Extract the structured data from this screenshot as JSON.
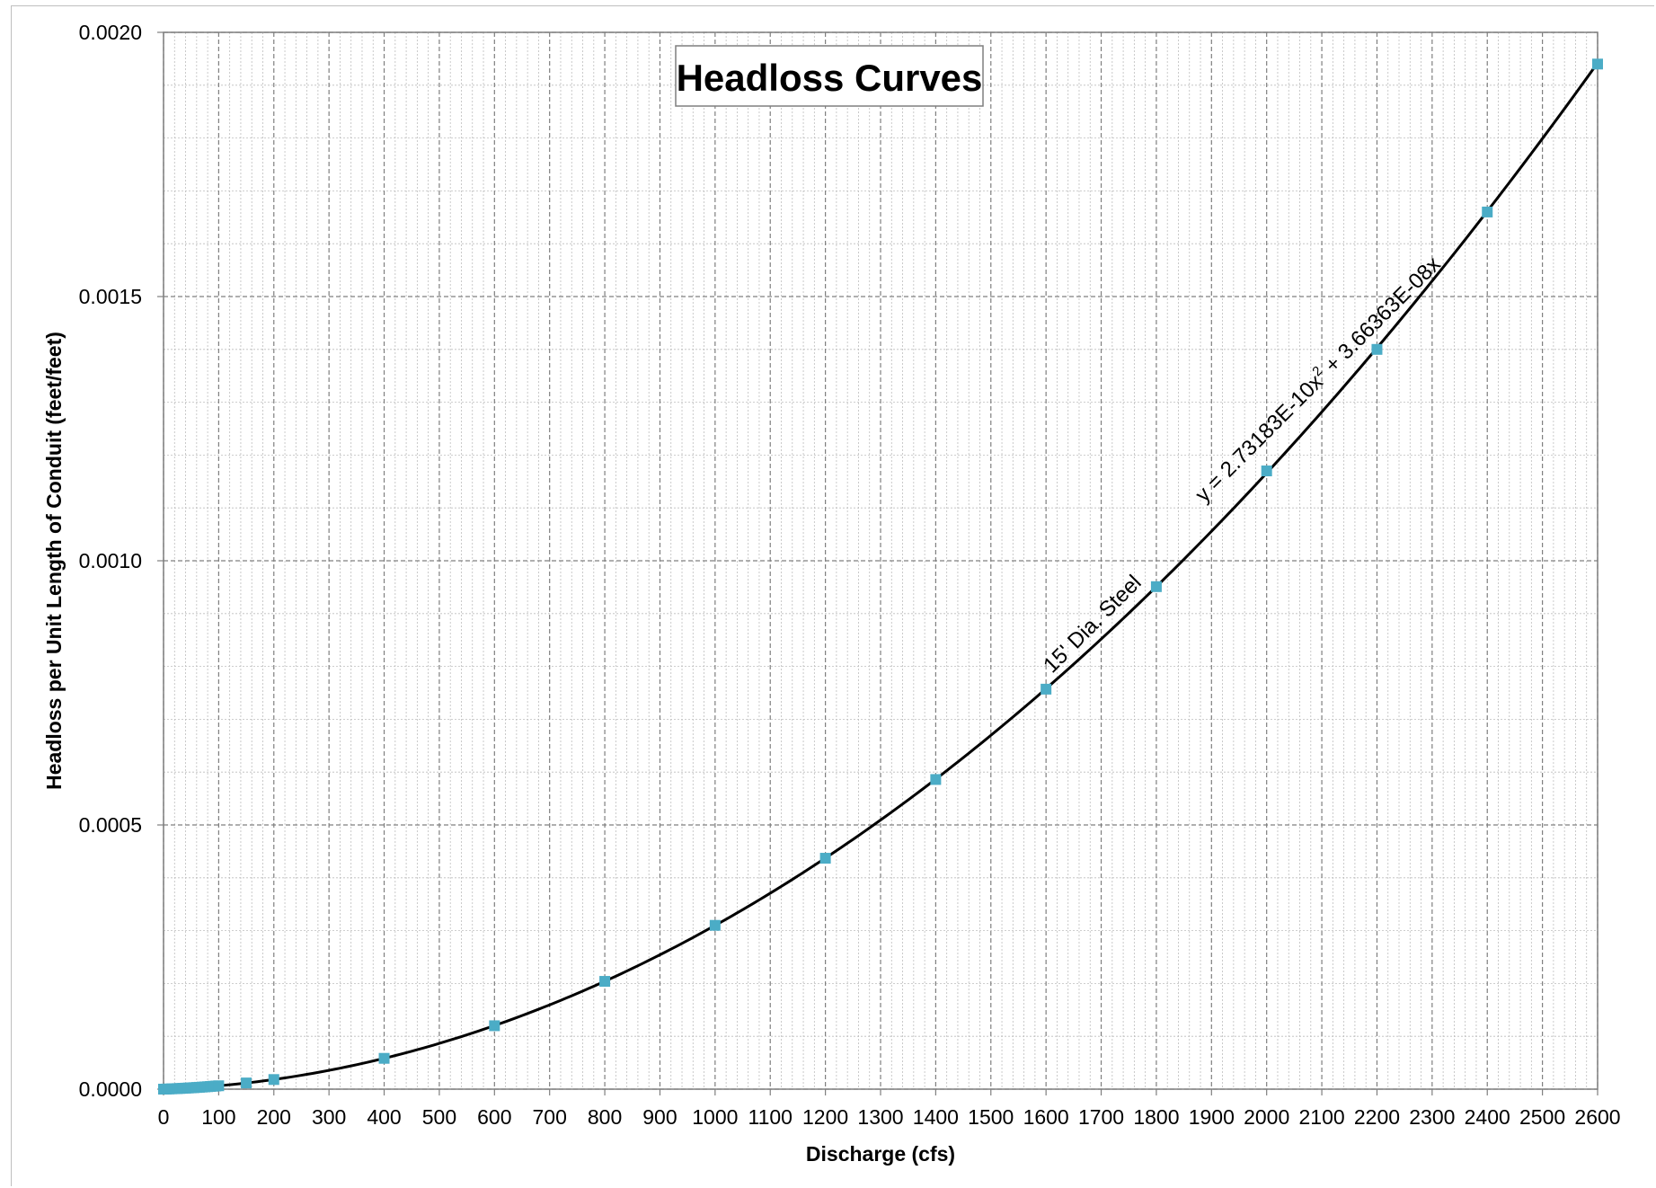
{
  "chart_data": {
    "type": "scatter",
    "title": "Headloss Curves",
    "xlabel": "Discharge (cfs)",
    "ylabel": "Headloss per Unit Length of Conduit (feet/feet)",
    "xlim": [
      0,
      2600
    ],
    "ylim": [
      0,
      0.002
    ],
    "x_ticks": [
      "0",
      "100",
      "200",
      "300",
      "400",
      "500",
      "600",
      "700",
      "800",
      "900",
      "1000",
      "1100",
      "1200",
      "1300",
      "1400",
      "1500",
      "1600",
      "1700",
      "1800",
      "1900",
      "2000",
      "2100",
      "2200",
      "2300",
      "2400",
      "2500",
      "2600"
    ],
    "y_ticks": [
      "0.0000",
      "0.0005",
      "0.0010",
      "0.0015",
      "0.0020"
    ],
    "grid": true,
    "series": [
      {
        "name": "15' Dia. Steel",
        "marker": "square",
        "color": "#4bacc6",
        "x": [
          0,
          5,
          10,
          15,
          20,
          25,
          30,
          35,
          40,
          45,
          50,
          55,
          60,
          65,
          70,
          75,
          80,
          85,
          90,
          95,
          100,
          150,
          200,
          400,
          600,
          800,
          1000,
          1200,
          1400,
          1600,
          1800,
          2000,
          2200,
          2400,
          2600
        ],
        "y": [
          0.0,
          1.9e-07,
          3.9e-07,
          6e-07,
          8.4e-07,
          1.09e-06,
          1.34e-06,
          1.62e-06,
          1.9e-06,
          2.2e-06,
          2.51e-06,
          2.84e-06,
          3.18e-06,
          3.53e-06,
          3.9e-06,
          4.28e-06,
          4.68e-06,
          5.09e-06,
          5.51e-06,
          5.94e-06,
          6.39e-06,
          1.17e-05,
          1.82e-05,
          5.83e-05,
          0.00012,
          0.000204,
          0.00031,
          0.000437,
          0.000586,
          0.000757,
          0.000951,
          0.00117,
          0.0014,
          0.00166,
          0.00194
        ]
      }
    ],
    "trendline": {
      "type": "polynomial",
      "a2": 2.73183e-10,
      "a1": 3.66363e-08,
      "color": "#000000",
      "equation_text": "y = 2.73183E-10x",
      "equation_sup": "2",
      "equation_tail": " + 3.66363E-08x"
    },
    "series_label": "15' Dia. Steel"
  }
}
